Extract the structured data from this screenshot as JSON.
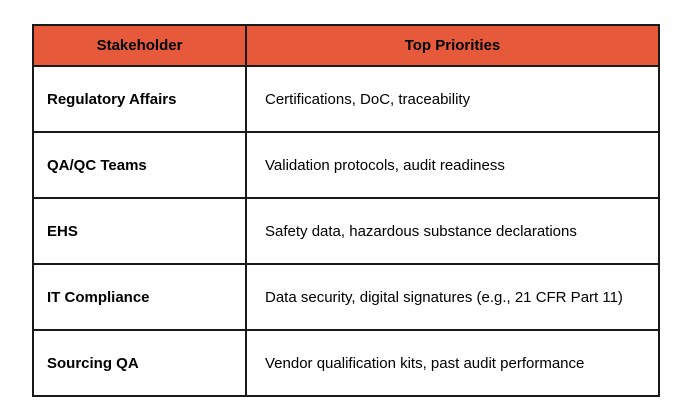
{
  "colors": {
    "header_bg": "#E6593B",
    "border": "#191919",
    "header_text": "#000000",
    "body_text": "#000000",
    "page_bg": "#FFFFFF"
  },
  "table": {
    "headers": {
      "stakeholder": "Stakeholder",
      "priorities": "Top Priorities"
    },
    "rows": [
      {
        "stakeholder": "Regulatory Affairs",
        "priorities": "Certifications, DoC, traceability"
      },
      {
        "stakeholder": "QA/QC Teams",
        "priorities": "Validation protocols, audit readiness"
      },
      {
        "stakeholder": "EHS",
        "priorities": "Safety data, hazardous substance declarations"
      },
      {
        "stakeholder": "IT Compliance",
        "priorities": "Data security, digital signatures (e.g., 21 CFR Part 11)"
      },
      {
        "stakeholder": "Sourcing QA",
        "priorities": "Vendor qualification kits, past audit performance"
      }
    ]
  }
}
